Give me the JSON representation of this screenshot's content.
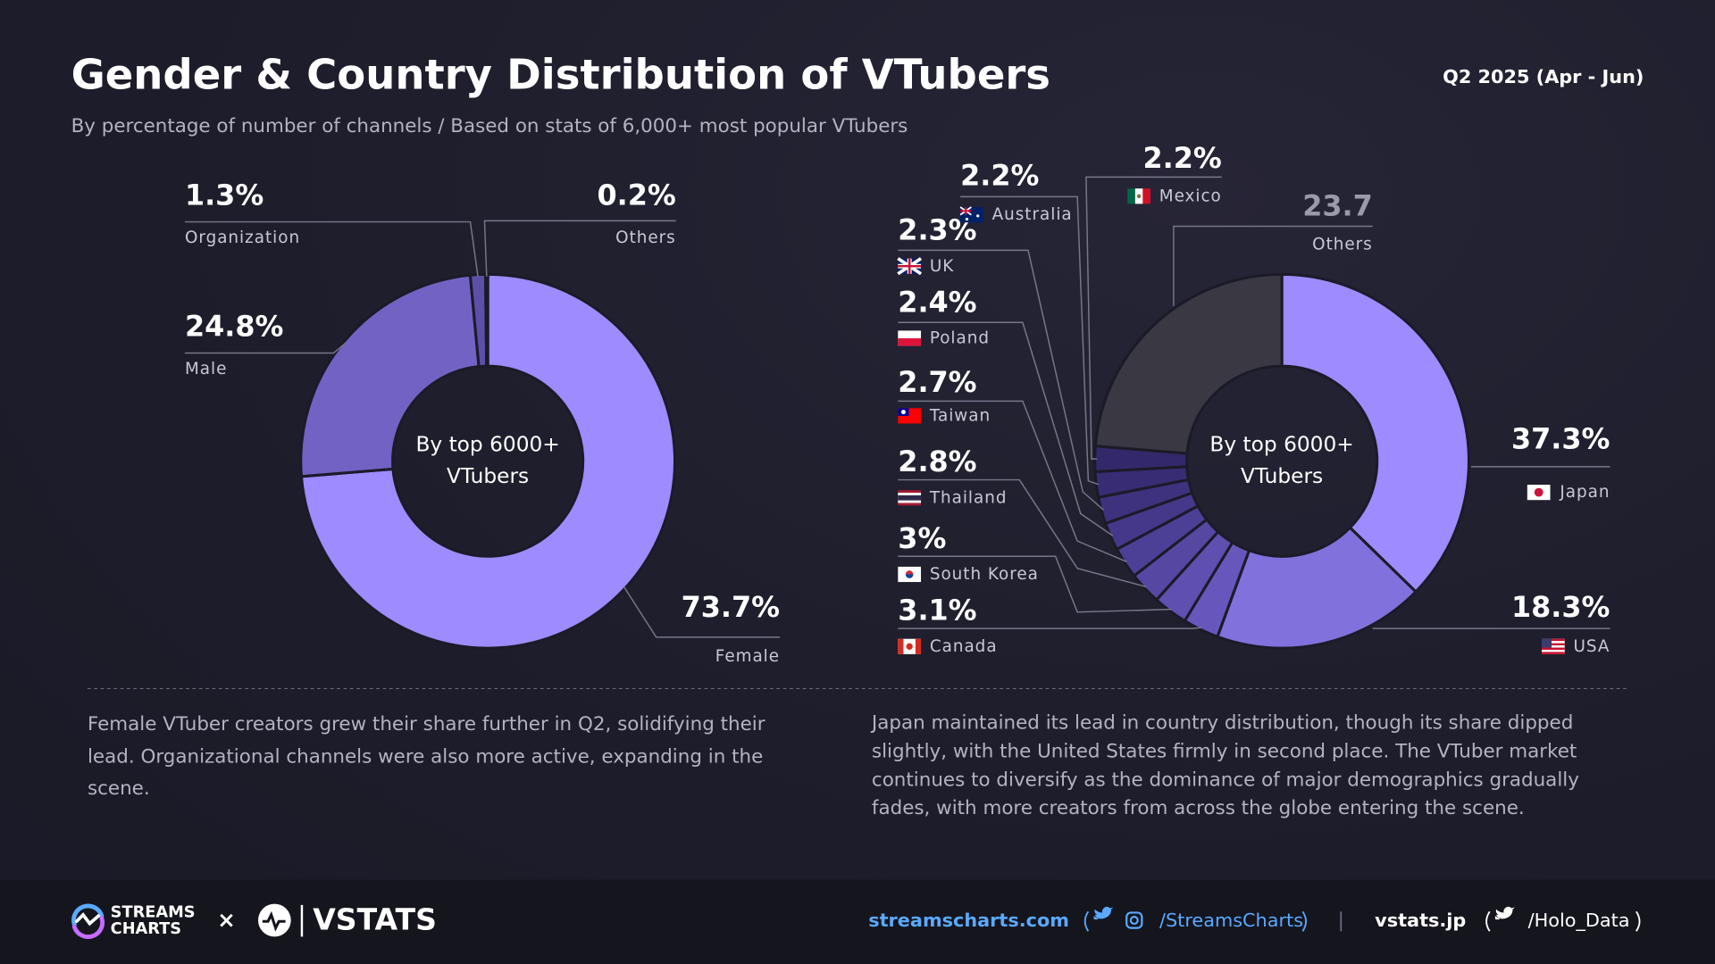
{
  "header": {
    "title": "Gender & Country Distribution of VTubers",
    "subtitle": "By percentage of number of channels / Based on stats of 6,000+ most popular VTubers",
    "period": "Q2 2025 (Apr - Jun)"
  },
  "chart_data": [
    {
      "type": "donut",
      "center_label": "By top 6000+ VTubers",
      "categories": [
        "Female",
        "Male",
        "Organization",
        "Others"
      ],
      "values": [
        73.7,
        24.8,
        1.3,
        0.2
      ],
      "value_labels": [
        "73.7%",
        "24.8%",
        "1.3%",
        "0.2%"
      ],
      "colors": [
        "#9d8bff",
        "#7262c4",
        "#5c4fa8",
        "#4e4590"
      ]
    },
    {
      "type": "donut",
      "center_label": "By top 6000+ VTubers",
      "categories": [
        "Japan",
        "USA",
        "Canada",
        "South Korea",
        "Thailand",
        "Taiwan",
        "Poland",
        "UK",
        "Australia",
        "Mexico",
        "Others"
      ],
      "values": [
        37.3,
        18.3,
        3.1,
        3,
        2.8,
        2.7,
        2.4,
        2.3,
        2.2,
        2.2,
        23.7
      ],
      "value_labels": [
        "37.3%",
        "18.3%",
        "3.1%",
        "3%",
        "2.8%",
        "2.7%",
        "2.4%",
        "2.3%",
        "2.2%",
        "2.2%",
        "23.7"
      ],
      "colors": [
        "#9d8bff",
        "#8071dc",
        "#6757bd",
        "#5e4fb0",
        "#5547a2",
        "#4c3f96",
        "#45388a",
        "#3e327e",
        "#382d74",
        "#33296a",
        "#3a3842"
      ]
    }
  ],
  "notes": [
    "Female VTuber creators grew their share further in Q2, solidifying their lead. Organizational channels were also more active, expanding in the scene.",
    "Japan maintained its lead in country distribution, though its share dipped slightly, with the United States firmly in second place. The VTuber market continues to diversify as the dominance of major demographics gradually fades, with more creators from across the globe entering the scene."
  ],
  "footer": {
    "brand_lines": [
      "STREAMS",
      "CHARTS"
    ],
    "separator": "×",
    "partner": "VSTATS",
    "site1": "streamscharts.com",
    "handle1": "/StreamsCharts",
    "site2": "vstats.jp",
    "handle2": "/Holo_Data"
  }
}
